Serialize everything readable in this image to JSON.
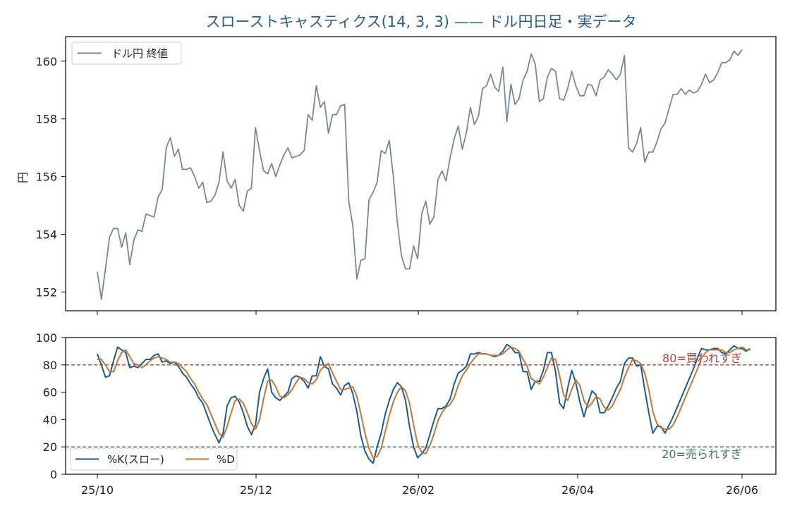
{
  "chart_data": [
    {
      "type": "line",
      "title": "スローストキャスティクス(14, 3, 3) —— ドル円日足・実データ",
      "ylabel": "円",
      "ylim": [
        151.35,
        160.85
      ],
      "yticks": [
        152,
        154,
        156,
        158,
        160
      ],
      "legend": "top-left",
      "series": [
        {
          "name": "ドル円 終値",
          "color": "#778899",
          "values": [
            152.7,
            151.75,
            152.8,
            153.9,
            154.2,
            154.2,
            153.55,
            154.05,
            152.95,
            153.8,
            154.15,
            154.1,
            154.7,
            154.65,
            154.6,
            155.3,
            155.55,
            157.0,
            157.35,
            156.7,
            156.95,
            156.25,
            156.25,
            156.3,
            156.0,
            155.6,
            155.8,
            155.1,
            155.15,
            155.35,
            155.8,
            156.85,
            155.85,
            155.6,
            155.9,
            155.0,
            154.8,
            155.5,
            155.6,
            157.7,
            156.9,
            156.2,
            156.1,
            156.45,
            156.0,
            156.4,
            156.75,
            157.0,
            156.65,
            156.7,
            156.75,
            156.9,
            158.15,
            157.95,
            159.15,
            158.4,
            158.6,
            157.5,
            158.15,
            158.15,
            158.45,
            158.5,
            155.15,
            154.3,
            152.45,
            153.1,
            153.15,
            155.2,
            155.45,
            155.8,
            156.9,
            156.8,
            157.25,
            156.0,
            154.4,
            153.25,
            152.8,
            152.8,
            153.6,
            153.15,
            154.7,
            155.15,
            154.35,
            154.6,
            155.9,
            156.2,
            155.85,
            156.65,
            157.3,
            157.75,
            156.95,
            157.5,
            158.4,
            157.8,
            158.1,
            159.05,
            159.15,
            159.55,
            159.1,
            158.95,
            159.8,
            157.9,
            159.2,
            158.5,
            158.7,
            159.35,
            159.65,
            160.25,
            159.9,
            158.6,
            158.7,
            159.45,
            159.75,
            159.65,
            158.7,
            158.65,
            159.05,
            159.65,
            159.15,
            158.8,
            158.8,
            159.2,
            159.15,
            158.8,
            159.35,
            159.45,
            159.7,
            159.55,
            159.35,
            159.55,
            160.2,
            157.0,
            156.85,
            157.15,
            157.7,
            156.5,
            156.85,
            156.85,
            157.2,
            157.65,
            157.85,
            158.35,
            158.85,
            158.85,
            159.05,
            158.85,
            159.0,
            158.9,
            158.95,
            159.2,
            159.55,
            159.25,
            159.35,
            159.6,
            159.95,
            159.95,
            160.05,
            160.35,
            160.2,
            160.4
          ]
        }
      ]
    },
    {
      "type": "line",
      "ylim": [
        0,
        100
      ],
      "yticks": [
        0,
        20,
        40,
        60,
        80,
        100
      ],
      "xticks": [
        "25/10",
        "25/12",
        "26/02",
        "26/04",
        "26/06"
      ],
      "legend": "bottom-left",
      "grid": false,
      "reference_lines": [
        {
          "y": 80,
          "label": "80=買われすぎ",
          "color": "#a94442"
        },
        {
          "y": 20,
          "label": "20=売られすぎ",
          "color": "#3d7a55"
        }
      ],
      "series": [
        {
          "name": "%K(スロー)",
          "color": "#1f5b8a",
          "values": [
            88,
            80,
            71,
            72,
            83,
            93,
            91,
            89,
            78,
            79,
            78,
            81,
            84,
            84,
            87,
            88,
            82,
            83,
            81,
            82,
            79,
            74,
            71,
            66,
            62,
            56,
            52,
            44,
            36,
            29,
            23,
            30,
            50,
            56,
            57,
            53,
            45,
            35,
            29,
            36,
            60,
            70,
            77,
            60,
            56,
            54,
            57,
            60,
            70,
            72,
            71,
            68,
            63,
            72,
            72,
            86,
            79,
            77,
            66,
            63,
            58,
            65,
            67,
            59,
            46,
            28,
            17,
            11,
            8,
            20,
            30,
            44,
            54,
            62,
            67,
            64,
            54,
            35,
            20,
            12,
            15,
            19,
            29,
            39,
            48,
            48,
            50,
            55,
            66,
            74,
            76,
            79,
            88,
            88,
            89,
            88,
            88,
            87,
            86,
            87,
            90,
            95,
            93,
            89,
            89,
            75,
            75,
            62,
            68,
            68,
            76,
            89,
            89,
            75,
            52,
            48,
            63,
            76,
            67,
            53,
            42,
            52,
            61,
            58,
            45,
            45,
            50,
            56,
            63,
            68,
            81,
            85,
            85,
            79,
            80,
            62,
            45,
            30,
            35,
            35,
            30,
            36,
            42,
            49,
            56,
            63,
            70,
            77,
            85,
            92,
            91,
            91,
            92,
            92,
            89,
            88,
            91,
            94,
            92,
            92,
            90,
            92
          ]
        },
        {
          "name": "%D",
          "color": "#c0773a",
          "values": [
            84,
            84,
            80,
            75,
            75,
            83,
            89,
            91,
            86,
            81,
            80,
            78,
            80,
            83,
            85,
            86,
            85,
            84,
            82,
            82,
            81,
            78,
            75,
            70,
            66,
            60,
            55,
            51,
            44,
            37,
            30,
            27,
            35,
            45,
            54,
            55,
            52,
            45,
            37,
            33,
            40,
            55,
            68,
            69,
            64,
            57,
            56,
            58,
            62,
            67,
            71,
            70,
            67,
            66,
            69,
            76,
            79,
            81,
            74,
            68,
            62,
            62,
            63,
            64,
            57,
            44,
            30,
            19,
            12,
            13,
            19,
            31,
            43,
            53,
            60,
            64,
            61,
            52,
            36,
            22,
            16,
            15,
            21,
            29,
            39,
            45,
            49,
            51,
            56,
            65,
            72,
            76,
            81,
            85,
            88,
            88,
            88,
            87,
            87,
            87,
            88,
            91,
            93,
            92,
            90,
            84,
            79,
            70,
            68,
            66,
            71,
            78,
            85,
            84,
            72,
            58,
            54,
            62,
            69,
            65,
            54,
            49,
            52,
            57,
            55,
            49,
            47,
            50,
            56,
            62,
            71,
            78,
            84,
            83,
            81,
            74,
            62,
            46,
            37,
            34,
            33,
            33,
            36,
            42,
            49,
            56,
            63,
            70,
            77,
            85,
            89,
            91,
            91,
            91,
            91,
            89,
            89,
            91,
            92,
            93,
            91,
            91
          ]
        }
      ]
    }
  ]
}
